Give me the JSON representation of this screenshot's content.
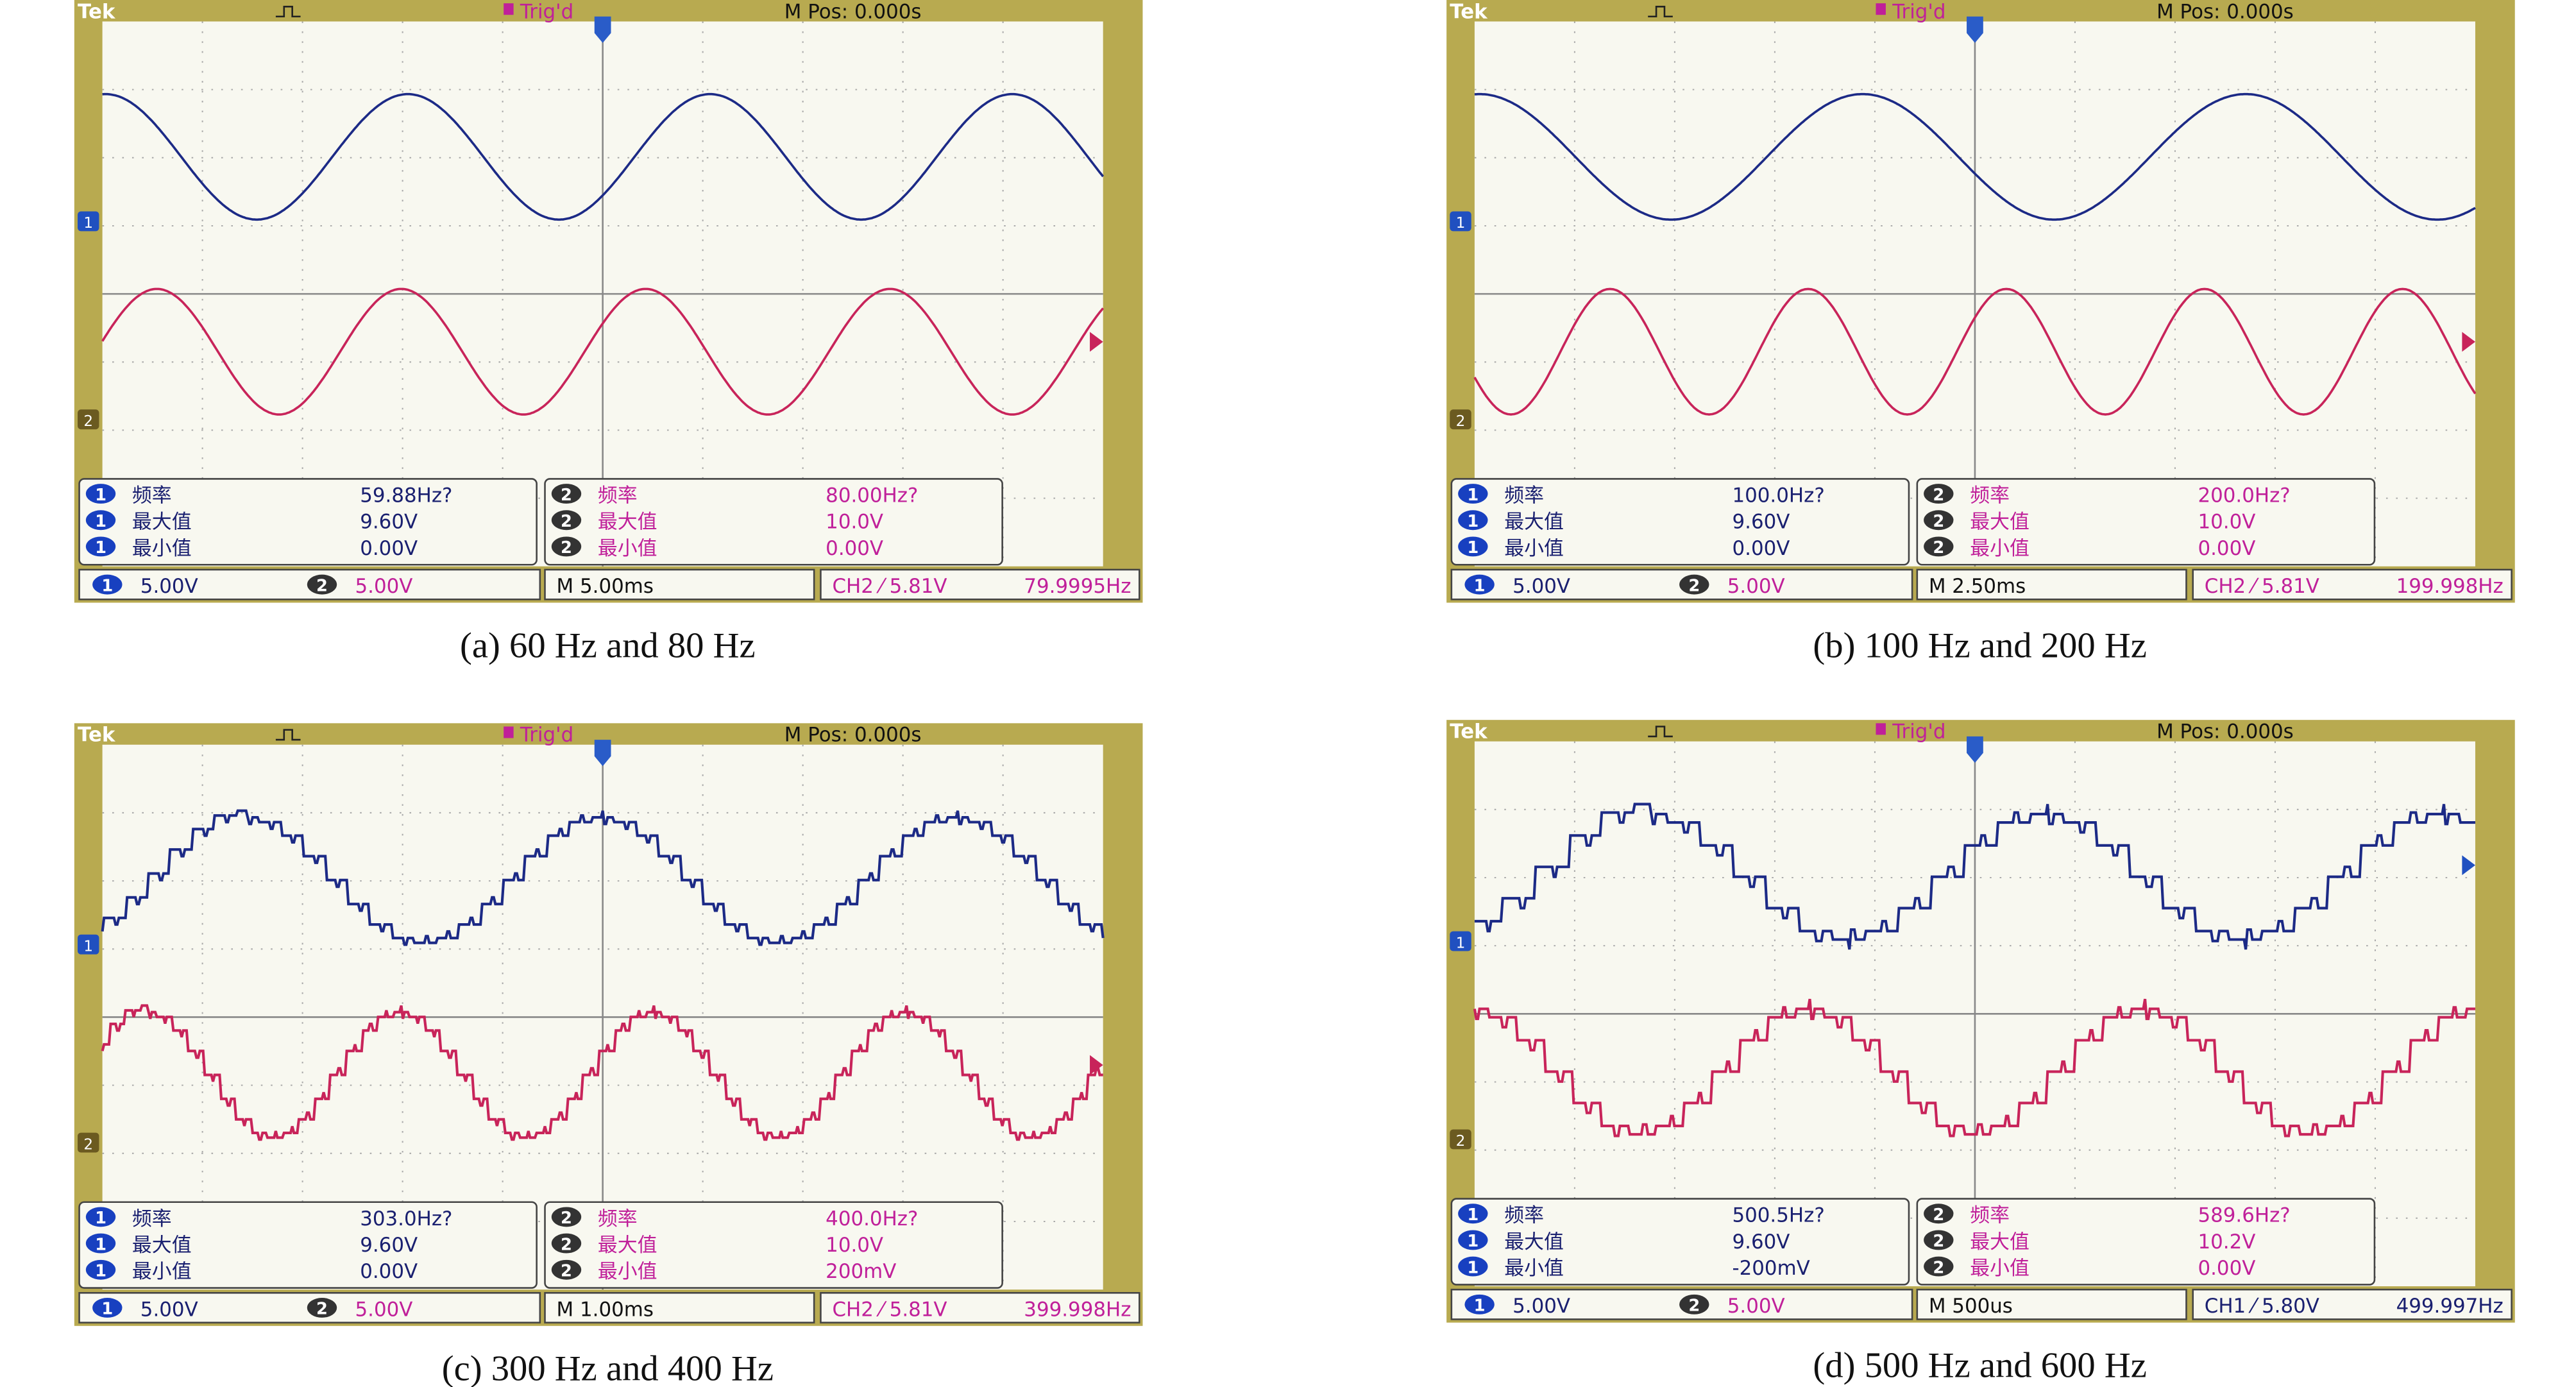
{
  "panels": [
    {
      "header": {
        "brand": "Tek",
        "status": "Trig'd",
        "position": "M Pos: 0.000s"
      },
      "markers": [
        "1",
        "2"
      ],
      "measurements": [
        {
          "channel": "1",
          "rows": [
            {
              "label": "频率",
              "value": "59.88Hz?"
            },
            {
              "label": "最大值",
              "value": "9.60V"
            },
            {
              "label": "最小值",
              "value": "0.00V"
            }
          ]
        },
        {
          "channel": "2",
          "rows": [
            {
              "label": "频率",
              "value": "80.00Hz?"
            },
            {
              "label": "最大值",
              "value": "10.0V"
            },
            {
              "label": "最小值",
              "value": "0.00V"
            }
          ]
        }
      ],
      "footer": {
        "ch1": {
          "channel": "1",
          "scale": "5.00V"
        },
        "ch2": {
          "channel": "2",
          "scale": "5.00V"
        },
        "timebase": "M 5.00ms",
        "trigger": "CH2 ⁄ 5.81V",
        "frequency": "79.9995Hz"
      },
      "caption": "(a) 60 Hz and 80 Hz"
    },
    {
      "header": {
        "brand": "Tek",
        "status": "Trig'd",
        "position": "M Pos: 0.000s"
      },
      "markers": [
        "1",
        "2"
      ],
      "measurements": [
        {
          "channel": "1",
          "rows": [
            {
              "label": "频率",
              "value": "100.0Hz?"
            },
            {
              "label": "最大值",
              "value": "9.60V"
            },
            {
              "label": "最小值",
              "value": "0.00V"
            }
          ]
        },
        {
          "channel": "2",
          "rows": [
            {
              "label": "频率",
              "value": "200.0Hz?"
            },
            {
              "label": "最大值",
              "value": "10.0V"
            },
            {
              "label": "最小值",
              "value": "0.00V"
            }
          ]
        }
      ],
      "footer": {
        "ch1": {
          "channel": "1",
          "scale": "5.00V"
        },
        "ch2": {
          "channel": "2",
          "scale": "5.00V"
        },
        "timebase": "M 2.50ms",
        "trigger": "CH2 ⁄ 5.81V",
        "frequency": "199.998Hz"
      },
      "caption": "(b) 100 Hz and 200 Hz"
    },
    {
      "header": {
        "brand": "Tek",
        "status": "Trig'd",
        "position": "M Pos: 0.000s"
      },
      "markers": [
        "1",
        "2"
      ],
      "measurements": [
        {
          "channel": "1",
          "rows": [
            {
              "label": "频率",
              "value": "303.0Hz?"
            },
            {
              "label": "最大值",
              "value": "9.60V"
            },
            {
              "label": "最小值",
              "value": "0.00V"
            }
          ]
        },
        {
          "channel": "2",
          "rows": [
            {
              "label": "频率",
              "value": "400.0Hz?"
            },
            {
              "label": "最大值",
              "value": "10.0V"
            },
            {
              "label": "最小值",
              "value": "200mV"
            }
          ]
        }
      ],
      "footer": {
        "ch1": {
          "channel": "1",
          "scale": "5.00V"
        },
        "ch2": {
          "channel": "2",
          "scale": "5.00V"
        },
        "timebase": "M 1.00ms",
        "trigger": "CH2 ⁄ 5.81V",
        "frequency": "399.998Hz"
      },
      "caption": "(c) 300 Hz and 400 Hz"
    },
    {
      "header": {
        "brand": "Tek",
        "status": "Trig'd",
        "position": "M Pos: 0.000s"
      },
      "markers": [
        "1",
        "2"
      ],
      "measurements": [
        {
          "channel": "1",
          "rows": [
            {
              "label": "频率",
              "value": "500.5Hz?"
            },
            {
              "label": "最大值",
              "value": "9.60V"
            },
            {
              "label": "最小值",
              "value": "-200mV"
            }
          ]
        },
        {
          "channel": "2",
          "rows": [
            {
              "label": "频率",
              "value": "589.6Hz?"
            },
            {
              "label": "最大值",
              "value": "10.2V"
            },
            {
              "label": "最小值",
              "value": "0.00V"
            }
          ]
        }
      ],
      "footer": {
        "ch1": {
          "channel": "1",
          "scale": "5.00V"
        },
        "ch2": {
          "channel": "2",
          "scale": "5.00V"
        },
        "timebase": "M 500us",
        "trigger": "CH1 ⁄ 5.80V",
        "frequency": "499.997Hz"
      },
      "caption": "(d) 500 Hz and 600 Hz"
    }
  ]
}
